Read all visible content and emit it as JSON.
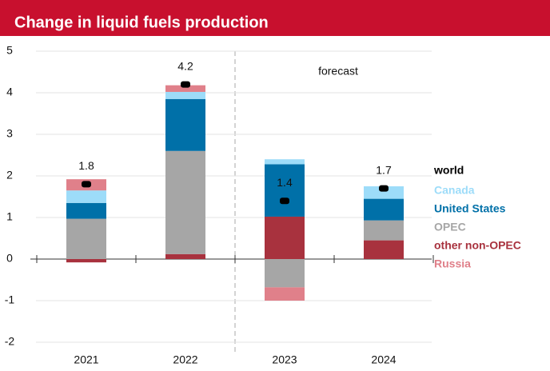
{
  "chart_data": {
    "type": "stacked_bar",
    "title": "Change in liquid fuels production",
    "annotation": "forecast",
    "categories": [
      "2021",
      "2022",
      "2023",
      "2024"
    ],
    "ylim": [
      -2,
      5
    ],
    "yticks": [
      -2,
      -1,
      0,
      1,
      2,
      3,
      4,
      5
    ],
    "grid": true,
    "world": {
      "name": "world",
      "color": "#000000",
      "values": [
        1.8,
        4.2,
        1.4,
        1.7
      ],
      "value_labels": [
        "1.8",
        "4.2",
        "1.4",
        "1.7"
      ]
    },
    "series": [
      {
        "name": "Canada",
        "color": "#9ddcf9",
        "values": [
          0.3,
          0.17,
          0.12,
          0.3
        ]
      },
      {
        "name": "United States",
        "color": "#0070a8",
        "values": [
          0.38,
          1.25,
          1.26,
          0.52
        ]
      },
      {
        "name": "OPEC",
        "color": "#a6a6a6",
        "values": [
          0.97,
          2.48,
          -0.68,
          0.48
        ]
      },
      {
        "name": "other non-OPEC",
        "color": "#a8323e",
        "values": [
          -0.08,
          0.12,
          1.02,
          0.45
        ]
      },
      {
        "name": "Russia",
        "color": "#e0808a",
        "values": [
          0.27,
          0.16,
          -0.32,
          0
        ]
      }
    ]
  }
}
